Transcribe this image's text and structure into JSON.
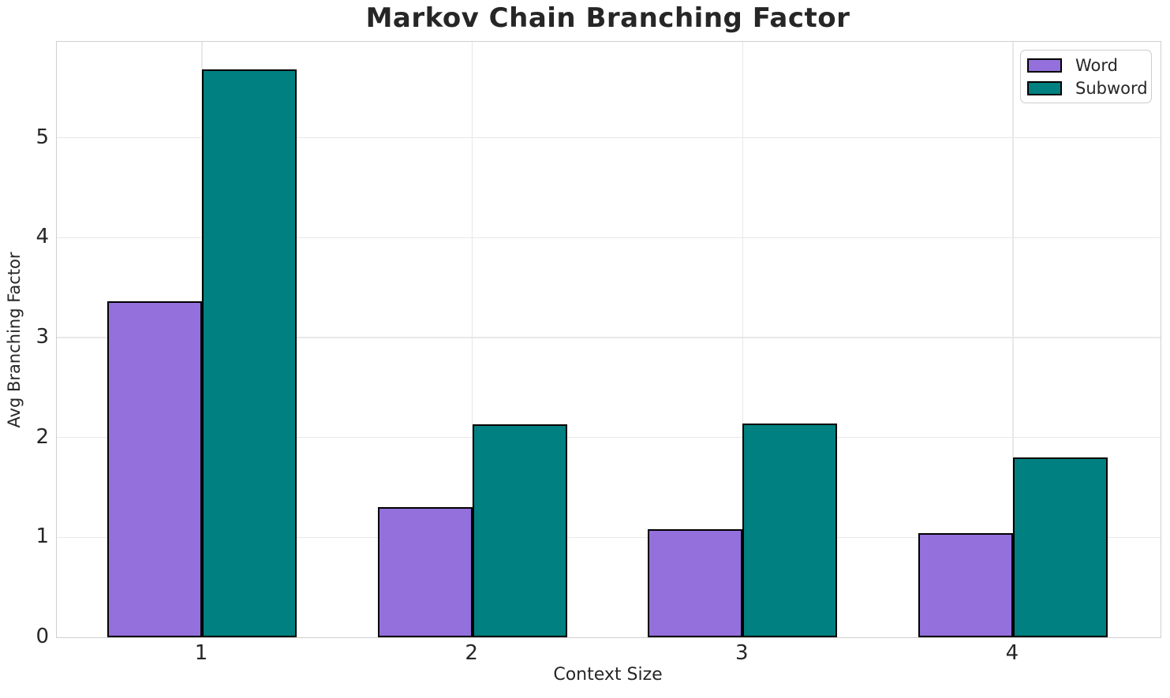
{
  "chart_data": {
    "type": "bar",
    "title": "Markov Chain Branching Factor",
    "xlabel": "Context Size",
    "ylabel": "Avg Branching Factor",
    "categories": [
      "1",
      "2",
      "3",
      "4"
    ],
    "series": [
      {
        "name": "Word",
        "color": "#9370db",
        "values": [
          3.36,
          1.3,
          1.08,
          1.04
        ]
      },
      {
        "name": "Subword",
        "color": "#008080",
        "values": [
          5.68,
          2.13,
          2.14,
          1.8
        ]
      }
    ],
    "ylim": [
      0,
      5.96
    ],
    "yticks": [
      0,
      1,
      2,
      3,
      4,
      5
    ],
    "bar_width_units": 0.35,
    "grid": true,
    "grid_color": "#e8e8e8",
    "spine_color": "#cfcfcf",
    "edge_color": "#000000",
    "legend_position": "upper right"
  }
}
